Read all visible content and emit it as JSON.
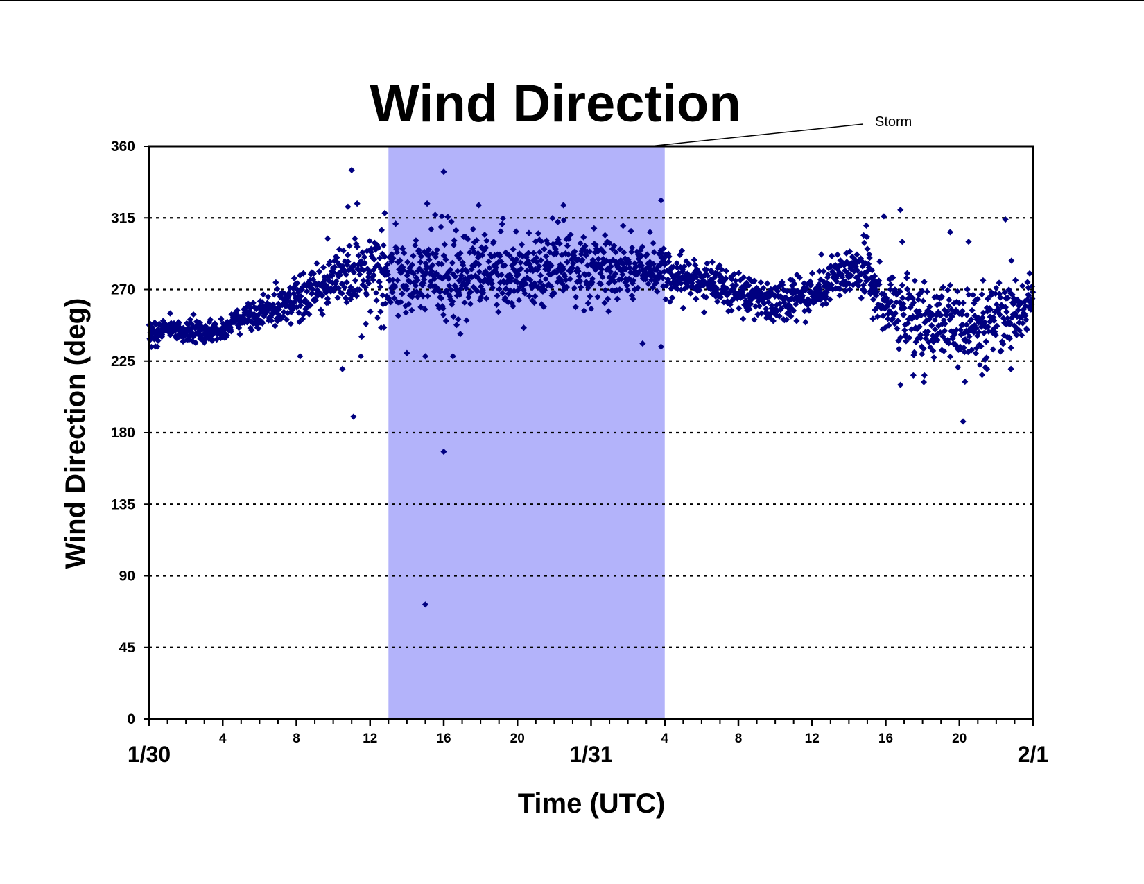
{
  "chart_data": {
    "type": "scatter",
    "title": "Wind Direction",
    "xlabel": "Time (UTC)",
    "ylabel": "Wind Direction (deg)",
    "ylim": [
      0,
      360
    ],
    "yticks": [
      "0",
      "45",
      "90",
      "135",
      "180",
      "225",
      "270",
      "315",
      "360"
    ],
    "xlim_hours": [
      0,
      48
    ],
    "xtick_labels": [
      {
        "hour": 4,
        "label": "4"
      },
      {
        "hour": 8,
        "label": "8"
      },
      {
        "hour": 12,
        "label": "12"
      },
      {
        "hour": 16,
        "label": "16"
      },
      {
        "hour": 20,
        "label": "20"
      },
      {
        "hour": 28,
        "label": "4"
      },
      {
        "hour": 32,
        "label": "8"
      },
      {
        "hour": 36,
        "label": "12"
      },
      {
        "hour": 40,
        "label": "16"
      },
      {
        "hour": 44,
        "label": "20"
      }
    ],
    "date_labels": [
      {
        "hour": 0,
        "label": "1/30"
      },
      {
        "hour": 24,
        "label": "1/31"
      },
      {
        "hour": 48,
        "label": "2/1"
      }
    ],
    "grid": "horizontal dotted",
    "marker": "diamond",
    "series_color": "#000080",
    "highlight": {
      "label": "Storm",
      "x_start_hour": 13,
      "x_end_hour": 28,
      "color": "#b3b3fa"
    },
    "trend": [
      [
        0,
        242
      ],
      [
        1,
        246
      ],
      [
        2,
        244
      ],
      [
        3,
        243
      ],
      [
        4,
        245
      ],
      [
        5,
        251
      ],
      [
        6,
        255
      ],
      [
        7,
        258
      ],
      [
        8,
        262
      ],
      [
        9,
        270
      ],
      [
        10,
        277
      ],
      [
        11,
        280
      ],
      [
        12,
        279
      ],
      [
        13,
        278
      ],
      [
        14,
        277
      ],
      [
        15,
        278
      ],
      [
        16,
        280
      ],
      [
        17,
        281
      ],
      [
        18,
        280
      ],
      [
        19,
        279
      ],
      [
        20,
        280
      ],
      [
        21,
        282
      ],
      [
        22,
        284
      ],
      [
        23,
        284
      ],
      [
        24,
        283
      ],
      [
        25,
        282
      ],
      [
        26,
        281
      ],
      [
        27,
        283
      ],
      [
        28,
        282
      ],
      [
        29,
        278
      ],
      [
        30,
        276
      ],
      [
        31,
        273
      ],
      [
        32,
        268
      ],
      [
        33,
        265
      ],
      [
        34,
        264
      ],
      [
        35,
        263
      ],
      [
        36,
        265
      ],
      [
        37,
        275
      ],
      [
        38,
        283
      ],
      [
        39,
        278
      ],
      [
        40,
        260
      ],
      [
        41,
        252
      ],
      [
        42,
        248
      ],
      [
        43,
        250
      ],
      [
        44,
        244
      ],
      [
        45,
        248
      ],
      [
        46,
        252
      ],
      [
        47,
        256
      ],
      [
        48,
        262
      ]
    ],
    "spread": [
      [
        0,
        6
      ],
      [
        4,
        5
      ],
      [
        7,
        8
      ],
      [
        9,
        12
      ],
      [
        11,
        16
      ],
      [
        13,
        18
      ],
      [
        16,
        20
      ],
      [
        20,
        18
      ],
      [
        24,
        15
      ],
      [
        28,
        12
      ],
      [
        30,
        10
      ],
      [
        34,
        9
      ],
      [
        36,
        9
      ],
      [
        38,
        10
      ],
      [
        40,
        16
      ],
      [
        44,
        18
      ],
      [
        48,
        14
      ]
    ],
    "outliers": [
      {
        "x": 11.0,
        "y": 345
      },
      {
        "x": 11.1,
        "y": 190
      },
      {
        "x": 10.5,
        "y": 220
      },
      {
        "x": 11.5,
        "y": 228
      },
      {
        "x": 10.8,
        "y": 322
      },
      {
        "x": 11.3,
        "y": 324
      },
      {
        "x": 12.8,
        "y": 318
      },
      {
        "x": 15.0,
        "y": 72
      },
      {
        "x": 16.0,
        "y": 168
      },
      {
        "x": 16.0,
        "y": 344
      },
      {
        "x": 15.1,
        "y": 324
      },
      {
        "x": 15.9,
        "y": 316
      },
      {
        "x": 17.9,
        "y": 323
      },
      {
        "x": 22.5,
        "y": 323
      },
      {
        "x": 27.8,
        "y": 326
      },
      {
        "x": 15.0,
        "y": 228
      },
      {
        "x": 16.5,
        "y": 228
      },
      {
        "x": 14.0,
        "y": 230
      },
      {
        "x": 26.8,
        "y": 236
      },
      {
        "x": 27.8,
        "y": 234
      },
      {
        "x": 39.9,
        "y": 316
      },
      {
        "x": 40.8,
        "y": 320
      },
      {
        "x": 43.5,
        "y": 306
      },
      {
        "x": 44.5,
        "y": 300
      },
      {
        "x": 46.5,
        "y": 314
      },
      {
        "x": 40.8,
        "y": 210
      },
      {
        "x": 41.5,
        "y": 216
      },
      {
        "x": 42.1,
        "y": 216
      },
      {
        "x": 44.3,
        "y": 212
      },
      {
        "x": 44.2,
        "y": 187
      },
      {
        "x": 45.5,
        "y": 220
      },
      {
        "x": 46.8,
        "y": 220
      },
      {
        "x": 36.5,
        "y": 292
      },
      {
        "x": 38.8,
        "y": 304
      },
      {
        "x": 40.9,
        "y": 300
      },
      {
        "x": 27.2,
        "y": 306
      },
      {
        "x": 9.7,
        "y": 302
      },
      {
        "x": 8.2,
        "y": 228
      },
      {
        "x": 12.6,
        "y": 246
      },
      {
        "x": 16.9,
        "y": 242
      }
    ],
    "n_points": 2200
  }
}
